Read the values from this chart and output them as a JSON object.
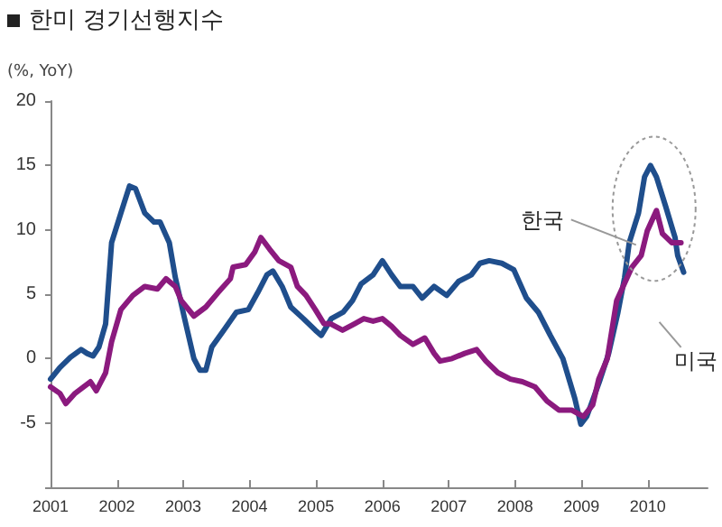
{
  "chart_data": {
    "type": "line",
    "title": "한미 경기선행지수",
    "ylabel": "(%, YoY)",
    "xlim": [
      2001,
      2010.9
    ],
    "xticks": [
      2001,
      2002,
      2003,
      2004,
      2005,
      2006,
      2007,
      2008,
      2009,
      2010
    ],
    "ylim": [
      -10,
      20
    ],
    "yticks": [
      {
        "value": -10,
        "label": null
      },
      -5,
      0,
      5,
      10,
      15,
      20
    ],
    "grid": false,
    "legend": false,
    "marker": "none",
    "line_style": "solid",
    "series": [
      {
        "name": "한국",
        "color": "#1f4e8c",
        "x": [
          2001.0,
          2001.14,
          2001.3,
          2001.46,
          2001.55,
          2001.64,
          2001.73,
          2001.83,
          2001.92,
          2002.06,
          2002.19,
          2002.28,
          2002.42,
          2002.56,
          2002.65,
          2002.79,
          2002.88,
          2003.02,
          2003.16,
          2003.25,
          2003.34,
          2003.43,
          2003.61,
          2003.8,
          2003.98,
          2004.12,
          2004.26,
          2004.35,
          2004.49,
          2004.62,
          2004.81,
          2004.99,
          2005.08,
          2005.23,
          2005.41,
          2005.55,
          2005.68,
          2005.86,
          2006.0,
          2006.14,
          2006.27,
          2006.46,
          2006.6,
          2006.78,
          2006.97,
          2007.15,
          2007.34,
          2007.47,
          2007.61,
          2007.8,
          2007.98,
          2008.17,
          2008.35,
          2008.53,
          2008.72,
          2008.9,
          2008.99,
          2009.08,
          2009.27,
          2009.41,
          2009.55,
          2009.65,
          2009.72,
          2009.86,
          2009.95,
          2010.04,
          2010.13,
          2010.27,
          2010.41,
          2010.45,
          2010.54
        ],
        "values": [
          -1.6,
          -0.7,
          0.1,
          0.7,
          0.4,
          0.2,
          0.9,
          2.7,
          9,
          11.3,
          13.4,
          13.2,
          11.3,
          10.6,
          10.6,
          9,
          6.3,
          3.1,
          0,
          -0.9,
          -0.9,
          0.9,
          2.2,
          3.6,
          3.8,
          5.1,
          6.5,
          6.8,
          5.6,
          4,
          3.1,
          2.2,
          1.8,
          3.1,
          3.6,
          4.5,
          5.8,
          6.5,
          7.6,
          6.5,
          5.6,
          5.6,
          4.7,
          5.6,
          4.9,
          6,
          6.5,
          7.4,
          7.6,
          7.4,
          6.9,
          4.7,
          3.6,
          1.8,
          0,
          -3.1,
          -5.1,
          -4.5,
          -1.8,
          0.4,
          3.6,
          6.3,
          9,
          11.3,
          14.1,
          15,
          14.1,
          11.8,
          9.4,
          8,
          6.7
        ]
      },
      {
        "name": "미국",
        "color": "#8b1a7e",
        "x": [
          2001.0,
          2001.14,
          2001.23,
          2001.37,
          2001.5,
          2001.6,
          2001.69,
          2001.83,
          2001.92,
          2002.06,
          2002.24,
          2002.42,
          2002.61,
          2002.74,
          2002.88,
          2002.97,
          2003.16,
          2003.34,
          2003.52,
          2003.71,
          2003.75,
          2003.94,
          2004.08,
          2004.17,
          2004.3,
          2004.44,
          2004.62,
          2004.72,
          2004.85,
          2004.99,
          2005.12,
          2005.22,
          2005.4,
          2005.58,
          2005.72,
          2005.86,
          2006.0,
          2006.14,
          2006.27,
          2006.46,
          2006.64,
          2006.78,
          2006.87,
          2007.05,
          2007.24,
          2007.42,
          2007.56,
          2007.74,
          2007.93,
          2008.11,
          2008.3,
          2008.48,
          2008.66,
          2008.85,
          2009.03,
          2009.17,
          2009.26,
          2009.39,
          2009.53,
          2009.76,
          2009.9,
          2009.99,
          2010.13,
          2010.22,
          2010.36,
          2010.5
        ],
        "values": [
          -2.2,
          -2.7,
          -3.5,
          -2.7,
          -2.2,
          -1.8,
          -2.5,
          -1.1,
          1.3,
          3.8,
          4.9,
          5.6,
          5.4,
          6.2,
          5.6,
          4.5,
          3.3,
          4,
          5.1,
          6.2,
          7.1,
          7.3,
          8.3,
          9.4,
          8.5,
          7.6,
          7.1,
          5.6,
          4.9,
          3.8,
          2.7,
          2.7,
          2.2,
          2.7,
          3.1,
          2.9,
          3.1,
          2.5,
          1.8,
          1.1,
          1.6,
          0.4,
          -0.2,
          0,
          0.4,
          0.7,
          -0.2,
          -1.1,
          -1.6,
          -1.8,
          -2.2,
          -3.3,
          -4,
          -4,
          -4.5,
          -3.6,
          -1.6,
          0,
          4.5,
          7.1,
          8,
          9.9,
          11.5,
          9.7,
          9,
          9
        ]
      }
    ]
  }
}
